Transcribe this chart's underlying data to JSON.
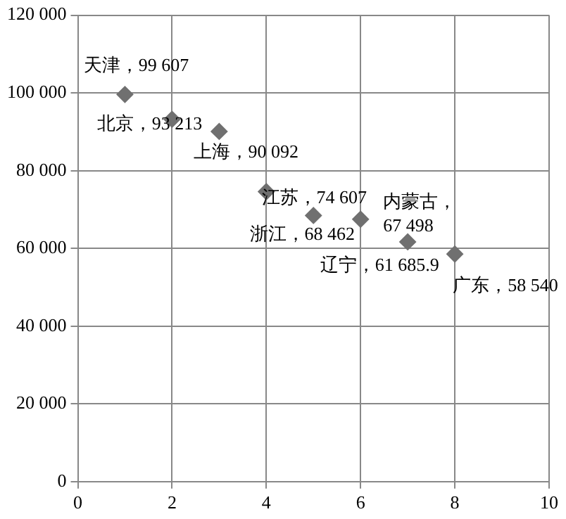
{
  "chart_data": {
    "type": "scatter",
    "x": [
      1,
      2,
      3,
      4,
      5,
      6,
      7,
      8
    ],
    "values": [
      99607,
      93213,
      90092,
      74607,
      68462,
      67498,
      61685.9,
      58540
    ],
    "value_labels": [
      "天津，99 607",
      "北京，93 213",
      "上海，90 092",
      "江苏，74 607",
      "浙江，68 462",
      "内蒙古，67 498",
      "辽宁，61 685.9",
      "广东，58 540"
    ],
    "color": "#707070",
    "marker": "diamond",
    "grid": true,
    "xlim": [
      0,
      10
    ],
    "xticks": [
      0,
      2,
      4,
      6,
      8,
      10
    ],
    "ylim": [
      0,
      120000
    ],
    "yticks": [
      0,
      {
        "value": 20000,
        "label": "20 000"
      },
      {
        "value": 40000,
        "label": "40 000"
      },
      {
        "value": 60000,
        "label": "60 000"
      },
      {
        "value": 80000,
        "label": "80 000"
      },
      {
        "value": 100000,
        "label": "100 000"
      },
      {
        "value": 120000,
        "label": "120 000"
      }
    ]
  }
}
